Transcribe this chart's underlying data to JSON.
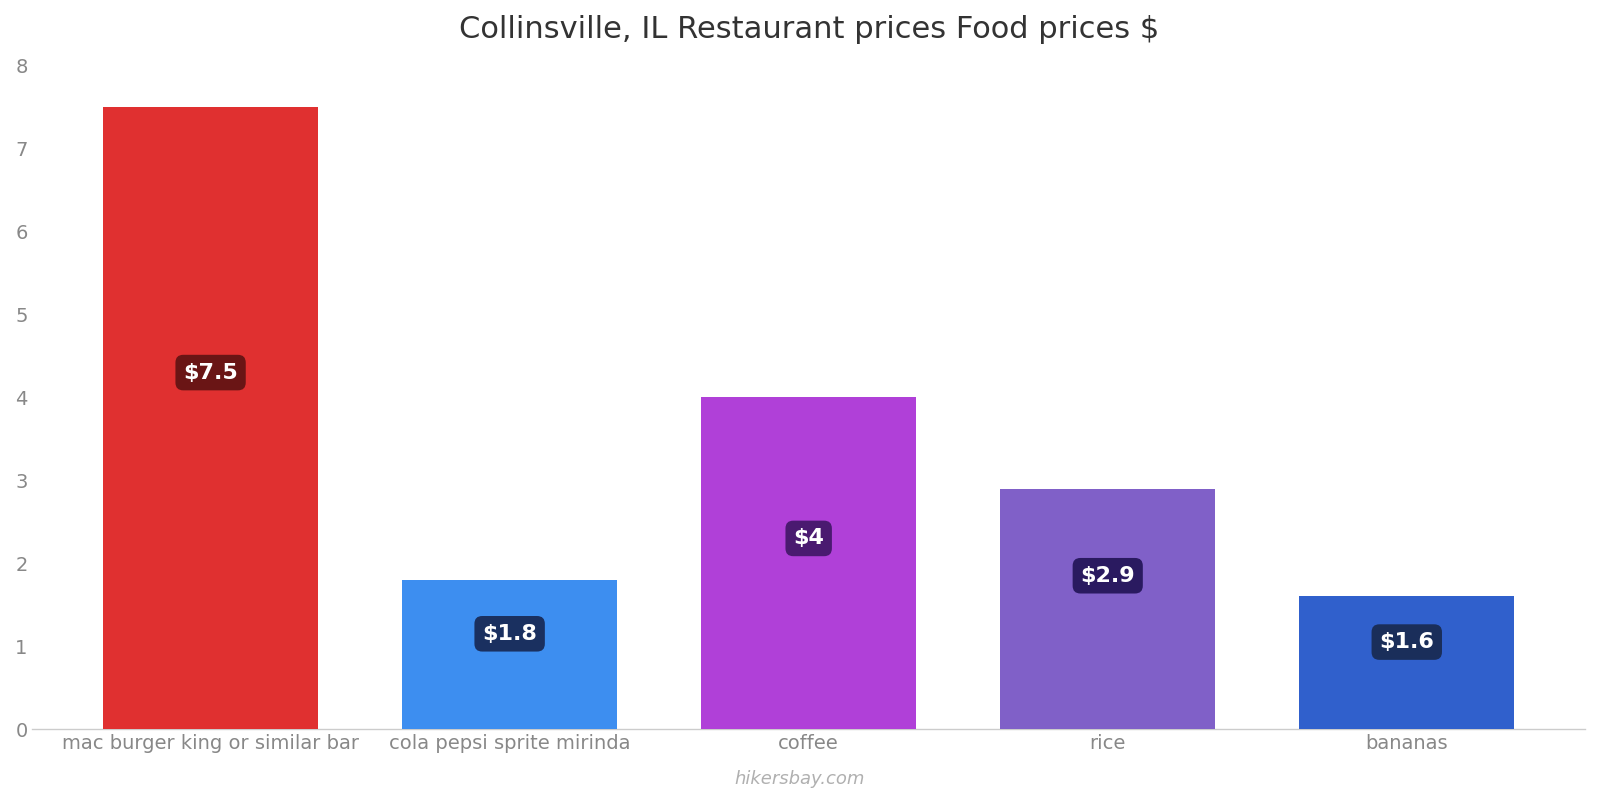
{
  "title": "Collinsville, IL Restaurant prices Food prices $",
  "categories": [
    "mac burger king or similar bar",
    "cola pepsi sprite mirinda",
    "coffee",
    "rice",
    "bananas"
  ],
  "values": [
    7.5,
    1.8,
    4.0,
    2.9,
    1.6
  ],
  "labels": [
    "$7.5",
    "$1.8",
    "$4",
    "$2.9",
    "$1.6"
  ],
  "bar_colors": [
    "#e03030",
    "#3d8ef0",
    "#b040d8",
    "#8060c8",
    "#3060cc"
  ],
  "label_box_colors": [
    "#6a1515",
    "#1a3060",
    "#4a1a70",
    "#2a1a60",
    "#1a2e5a"
  ],
  "ylim": [
    0,
    8
  ],
  "yticks": [
    0,
    1,
    2,
    3,
    4,
    5,
    6,
    7,
    8
  ],
  "title_fontsize": 22,
  "tick_fontsize": 14,
  "label_fontsize": 16,
  "watermark": "hikersbay.com",
  "background_color": "#ffffff",
  "label_y_positions": [
    4.3,
    1.15,
    2.3,
    1.85,
    1.05
  ],
  "bar_width": 0.72
}
